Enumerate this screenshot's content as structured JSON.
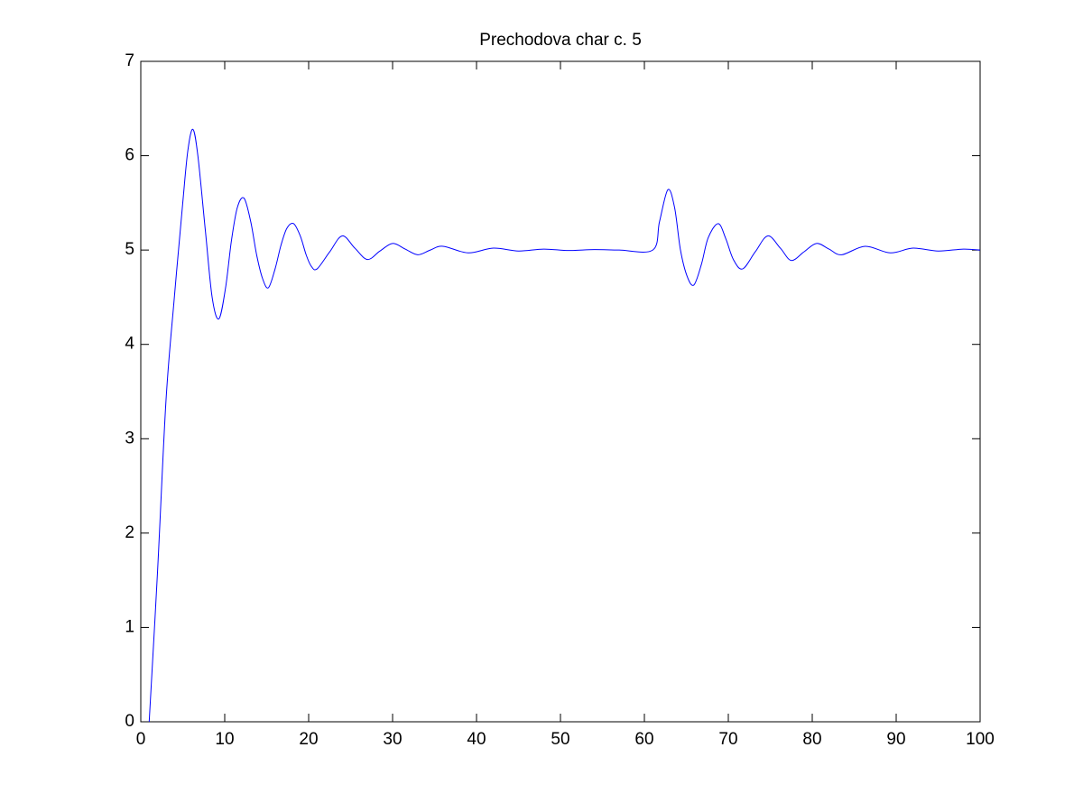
{
  "chart_data": {
    "type": "line",
    "title": "Prechodova char c. 5",
    "x": [
      1,
      2,
      3,
      4,
      5,
      5.6,
      6.2,
      6.8,
      7.7,
      8.5,
      9.3,
      10.1,
      10.8,
      11.5,
      12.3,
      13.1,
      13.8,
      14.5,
      15.2,
      16,
      16.7,
      17.4,
      18.2,
      19,
      19.7,
      20.3,
      21,
      22.5,
      24,
      25.5,
      27,
      28.5,
      30,
      31.5,
      33,
      34.5,
      36,
      39,
      42,
      45,
      48,
      51,
      54,
      57,
      61,
      61.8,
      62.8,
      63.6,
      64.3,
      65.1,
      65.9,
      66.8,
      67.6,
      68.8,
      69.7,
      70.6,
      71.7,
      73.2,
      74.7,
      76.2,
      77.5,
      79,
      80.5,
      82,
      83.5,
      86.3,
      89.3,
      92,
      95,
      98,
      100
    ],
    "series": [
      {
        "color": "#0000ff",
        "values": [
          0,
          1.6,
          3.4,
          4.5,
          5.5,
          6.05,
          6.28,
          6.0,
          5.2,
          4.5,
          4.27,
          4.6,
          5.1,
          5.45,
          5.55,
          5.3,
          4.95,
          4.7,
          4.6,
          4.8,
          5.05,
          5.23,
          5.28,
          5.15,
          4.95,
          4.83,
          4.8,
          4.98,
          5.15,
          5.02,
          4.9,
          4.99,
          5.07,
          5.01,
          4.95,
          5.0,
          5.04,
          4.97,
          5.02,
          4.99,
          5.01,
          4.995,
          5.005,
          5,
          5,
          5.3,
          5.64,
          5.45,
          5.0,
          4.72,
          4.63,
          4.85,
          5.13,
          5.28,
          5.12,
          4.9,
          4.8,
          4.98,
          5.15,
          5.02,
          4.89,
          4.98,
          5.07,
          5.01,
          4.95,
          5.04,
          4.97,
          5.02,
          4.99,
          5.01,
          5
        ]
      }
    ],
    "xlim": [
      0,
      100
    ],
    "xticks": [
      0,
      10,
      20,
      30,
      40,
      50,
      60,
      70,
      80,
      90,
      100
    ],
    "ylim": [
      0,
      7
    ],
    "yticks": [
      0,
      1,
      2,
      3,
      4,
      5,
      6,
      7
    ],
    "grid": false
  }
}
